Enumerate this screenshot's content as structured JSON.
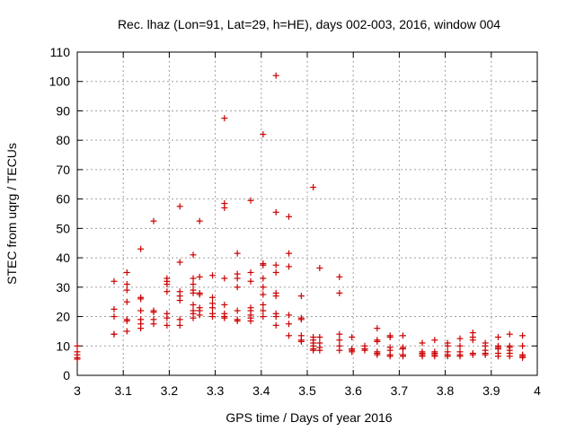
{
  "chart_data": {
    "type": "scatter",
    "title": "Rec. lhaz (Lon=91, Lat=29, h=HE), days 002-003, 2016, window 004",
    "xlabel": "GPS time / Days of year 2016",
    "ylabel": "STEC from uqrg / TECUs",
    "xlim": [
      3.0,
      4.0
    ],
    "ylim": [
      0,
      110
    ],
    "xticks": [
      3.0,
      3.1,
      3.2,
      3.3,
      3.4,
      3.5,
      3.6,
      3.7,
      3.8,
      3.9,
      4.0
    ],
    "xtick_labels": [
      "3",
      "3.1",
      "3.2",
      "3.3",
      "3.4",
      "3.5",
      "3.6",
      "3.7",
      "3.8",
      "3.9",
      "4"
    ],
    "yticks": [
      0,
      10,
      20,
      30,
      40,
      50,
      60,
      70,
      80,
      90,
      100,
      110
    ],
    "ytick_labels": [
      "0",
      "10",
      "20",
      "30",
      "40",
      "50",
      "60",
      "70",
      "80",
      "90",
      "100",
      "110"
    ],
    "grid": true,
    "marker": "+",
    "color": "#cc0000",
    "series": [
      {
        "name": "STEC",
        "points": [
          [
            3.0,
            10
          ],
          [
            3.0,
            8
          ],
          [
            3.0,
            7
          ],
          [
            3.0,
            6
          ],
          [
            3.0,
            5.5
          ],
          [
            3.08,
            32
          ],
          [
            3.08,
            22.5
          ],
          [
            3.08,
            20
          ],
          [
            3.08,
            14
          ],
          [
            3.08,
            14
          ],
          [
            3.108,
            35
          ],
          [
            3.108,
            31
          ],
          [
            3.108,
            29
          ],
          [
            3.108,
            25
          ],
          [
            3.108,
            19
          ],
          [
            3.108,
            18.5
          ],
          [
            3.108,
            15
          ],
          [
            3.138,
            43
          ],
          [
            3.138,
            26.5
          ],
          [
            3.138,
            26
          ],
          [
            3.138,
            22
          ],
          [
            3.138,
            19
          ],
          [
            3.138,
            17.5
          ],
          [
            3.138,
            16
          ],
          [
            3.166,
            52.5
          ],
          [
            3.166,
            22
          ],
          [
            3.166,
            21.5
          ],
          [
            3.166,
            19
          ],
          [
            3.166,
            17.5
          ],
          [
            3.195,
            33
          ],
          [
            3.195,
            32
          ],
          [
            3.195,
            31
          ],
          [
            3.195,
            28.5
          ],
          [
            3.195,
            21
          ],
          [
            3.195,
            19.5
          ],
          [
            3.195,
            17
          ],
          [
            3.223,
            57.5
          ],
          [
            3.223,
            38.5
          ],
          [
            3.223,
            28.5
          ],
          [
            3.223,
            27
          ],
          [
            3.223,
            25.5
          ],
          [
            3.223,
            19
          ],
          [
            3.223,
            17
          ],
          [
            3.252,
            41
          ],
          [
            3.252,
            33
          ],
          [
            3.252,
            31
          ],
          [
            3.252,
            29
          ],
          [
            3.252,
            28
          ],
          [
            3.252,
            24
          ],
          [
            3.252,
            22
          ],
          [
            3.252,
            21
          ],
          [
            3.252,
            19.5
          ],
          [
            3.266,
            52.5
          ],
          [
            3.266,
            33.5
          ],
          [
            3.266,
            28
          ],
          [
            3.266,
            27.5
          ],
          [
            3.266,
            23
          ],
          [
            3.266,
            22
          ],
          [
            3.266,
            20.5
          ],
          [
            3.294,
            34
          ],
          [
            3.294,
            26.5
          ],
          [
            3.294,
            24.5
          ],
          [
            3.294,
            23
          ],
          [
            3.294,
            21
          ],
          [
            3.294,
            20
          ],
          [
            3.32,
            87.5
          ],
          [
            3.32,
            58.5
          ],
          [
            3.32,
            57
          ],
          [
            3.32,
            33
          ],
          [
            3.32,
            24
          ],
          [
            3.32,
            21
          ],
          [
            3.32,
            20
          ],
          [
            3.32,
            19.5
          ],
          [
            3.348,
            41.5
          ],
          [
            3.348,
            34.5
          ],
          [
            3.348,
            33
          ],
          [
            3.348,
            30
          ],
          [
            3.348,
            22
          ],
          [
            3.348,
            19
          ],
          [
            3.348,
            18.5
          ],
          [
            3.377,
            59.5
          ],
          [
            3.377,
            35
          ],
          [
            3.377,
            32
          ],
          [
            3.377,
            23
          ],
          [
            3.377,
            22
          ],
          [
            3.377,
            20.5
          ],
          [
            3.377,
            19.5
          ],
          [
            3.377,
            18.5
          ],
          [
            3.404,
            82
          ],
          [
            3.404,
            38
          ],
          [
            3.404,
            37.5
          ],
          [
            3.404,
            33
          ],
          [
            3.404,
            30
          ],
          [
            3.404,
            27.5
          ],
          [
            3.404,
            24
          ],
          [
            3.404,
            22
          ],
          [
            3.404,
            20
          ],
          [
            3.432,
            102
          ],
          [
            3.432,
            55.5
          ],
          [
            3.432,
            37.5
          ],
          [
            3.432,
            35
          ],
          [
            3.432,
            28
          ],
          [
            3.432,
            27
          ],
          [
            3.432,
            21
          ],
          [
            3.432,
            20
          ],
          [
            3.432,
            17
          ],
          [
            3.46,
            54
          ],
          [
            3.46,
            41.5
          ],
          [
            3.46,
            37
          ],
          [
            3.46,
            20.5
          ],
          [
            3.46,
            17.5
          ],
          [
            3.46,
            13.5
          ],
          [
            3.487,
            27
          ],
          [
            3.487,
            19.5
          ],
          [
            3.487,
            19
          ],
          [
            3.487,
            13.5
          ],
          [
            3.487,
            12
          ],
          [
            3.487,
            11.5
          ],
          [
            3.513,
            64
          ],
          [
            3.513,
            13
          ],
          [
            3.513,
            12
          ],
          [
            3.513,
            11
          ],
          [
            3.513,
            10
          ],
          [
            3.513,
            9
          ],
          [
            3.513,
            8.5
          ],
          [
            3.527,
            36.5
          ],
          [
            3.527,
            13
          ],
          [
            3.527,
            11
          ],
          [
            3.527,
            9.5
          ],
          [
            3.527,
            8.5
          ],
          [
            3.57,
            33.5
          ],
          [
            3.57,
            28
          ],
          [
            3.57,
            14
          ],
          [
            3.57,
            12
          ],
          [
            3.57,
            10
          ],
          [
            3.57,
            8.5
          ],
          [
            3.597,
            13
          ],
          [
            3.597,
            9
          ],
          [
            3.597,
            8.5
          ],
          [
            3.597,
            8
          ],
          [
            3.625,
            10
          ],
          [
            3.625,
            9
          ],
          [
            3.625,
            8.5
          ],
          [
            3.652,
            16
          ],
          [
            3.652,
            12
          ],
          [
            3.652,
            11.5
          ],
          [
            3.652,
            8
          ],
          [
            3.652,
            7.5
          ],
          [
            3.652,
            7
          ],
          [
            3.68,
            13.5
          ],
          [
            3.68,
            13
          ],
          [
            3.68,
            9.5
          ],
          [
            3.68,
            8.5
          ],
          [
            3.68,
            7
          ],
          [
            3.68,
            6.5
          ],
          [
            3.708,
            13.5
          ],
          [
            3.708,
            9.5
          ],
          [
            3.708,
            9
          ],
          [
            3.708,
            7
          ],
          [
            3.708,
            6.5
          ],
          [
            3.75,
            11
          ],
          [
            3.75,
            8
          ],
          [
            3.75,
            7.5
          ],
          [
            3.75,
            7
          ],
          [
            3.75,
            6.5
          ],
          [
            3.777,
            12
          ],
          [
            3.777,
            8
          ],
          [
            3.777,
            7.5
          ],
          [
            3.777,
            7
          ],
          [
            3.777,
            6.5
          ],
          [
            3.805,
            11
          ],
          [
            3.805,
            10
          ],
          [
            3.805,
            8
          ],
          [
            3.805,
            7
          ],
          [
            3.805,
            6.5
          ],
          [
            3.832,
            12.5
          ],
          [
            3.832,
            10
          ],
          [
            3.832,
            8
          ],
          [
            3.832,
            7
          ],
          [
            3.832,
            6.5
          ],
          [
            3.86,
            14.5
          ],
          [
            3.86,
            13
          ],
          [
            3.86,
            12
          ],
          [
            3.86,
            7.5
          ],
          [
            3.86,
            7
          ],
          [
            3.887,
            11
          ],
          [
            3.887,
            10
          ],
          [
            3.887,
            8.5
          ],
          [
            3.887,
            7.5
          ],
          [
            3.887,
            7
          ],
          [
            3.915,
            13
          ],
          [
            3.915,
            10
          ],
          [
            3.915,
            9.5
          ],
          [
            3.915,
            9
          ],
          [
            3.915,
            7.5
          ],
          [
            3.915,
            6.5
          ],
          [
            3.94,
            14
          ],
          [
            3.94,
            10
          ],
          [
            3.94,
            9.5
          ],
          [
            3.94,
            8.5
          ],
          [
            3.94,
            7.5
          ],
          [
            3.94,
            6.5
          ],
          [
            3.968,
            13.5
          ],
          [
            3.968,
            10
          ],
          [
            3.968,
            7
          ],
          [
            3.968,
            6.5
          ],
          [
            3.968,
            6
          ]
        ]
      }
    ]
  }
}
